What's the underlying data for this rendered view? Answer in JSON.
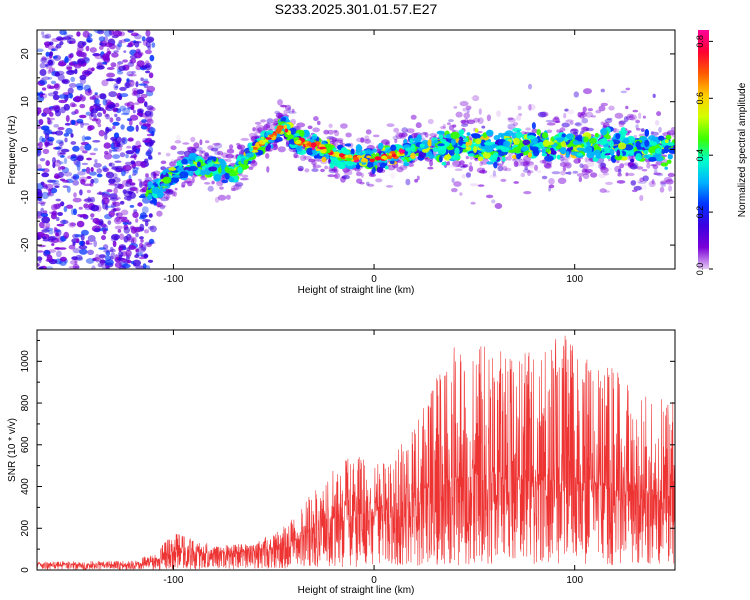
{
  "title": "S233.2025.301.01.57.E27",
  "chart_data": [
    {
      "type": "heatmap",
      "xlabel": "Height of straight line (km)",
      "ylabel": "Frequency (Hz)",
      "xlim": [
        -168,
        150
      ],
      "ylim": [
        -25,
        25
      ],
      "xticks": [
        -100,
        0,
        100
      ],
      "yticks": [
        -20,
        -10,
        0,
        10,
        20
      ],
      "colorbar": {
        "label": "Normalized spectral amplitude",
        "range": [
          0.0,
          0.84
        ],
        "ticks": [
          "0.0",
          "0.2",
          "0.4",
          "0.6",
          "0.8"
        ],
        "stops": [
          "#e6c8f5",
          "#7a00d8",
          "#3c00e0",
          "#0033ff",
          "#00b4ff",
          "#00ffcc",
          "#3cff00",
          "#d2ff00",
          "#ffcc00",
          "#ff5a00",
          "#ff0033",
          "#ff0099"
        ]
      },
      "ridge": {
        "x": [
          -110,
          -100,
          -90,
          -80,
          -70,
          -60,
          -50,
          -45,
          -40,
          -30,
          -20,
          -10,
          0,
          10,
          20,
          30,
          40,
          50,
          60,
          70,
          80,
          90,
          100,
          110,
          120,
          130,
          140,
          150
        ],
        "frequency": [
          -9,
          -5,
          -3,
          -4,
          -5,
          0,
          3,
          5,
          2,
          1,
          -1,
          -2,
          -2,
          -1,
          0,
          0,
          1,
          1,
          0,
          1,
          1,
          1,
          1,
          1,
          1,
          0,
          0,
          0
        ]
      }
    },
    {
      "type": "line",
      "xlabel": "Height of straight line (km)",
      "ylabel": "SNR (10 * v/v)",
      "xlim": [
        -168,
        150
      ],
      "ylim": [
        0,
        1150
      ],
      "xticks": [
        -100,
        0,
        100
      ],
      "yticks": [
        0,
        200,
        400,
        600,
        800,
        1000
      ],
      "color": "#ee3333",
      "envelope": {
        "x": [
          -168,
          -120,
          -110,
          -100,
          -90,
          -80,
          -60,
          -50,
          -40,
          -30,
          -20,
          -10,
          0,
          10,
          20,
          30,
          40,
          50,
          60,
          70,
          80,
          90,
          100,
          110,
          120,
          130,
          140,
          150
        ],
        "mean": [
          25,
          25,
          40,
          80,
          85,
          75,
          90,
          110,
          140,
          200,
          250,
          260,
          280,
          300,
          370,
          400,
          430,
          450,
          440,
          430,
          420,
          430,
          420,
          400,
          380,
          370,
          360,
          350
        ],
        "peak": [
          40,
          45,
          80,
          185,
          150,
          120,
          130,
          180,
          260,
          380,
          480,
          560,
          500,
          560,
          700,
          900,
          1120,
          1080,
          1100,
          1000,
          1080,
          1150,
          1100,
          950,
          1000,
          900,
          850,
          800
        ]
      }
    }
  ]
}
